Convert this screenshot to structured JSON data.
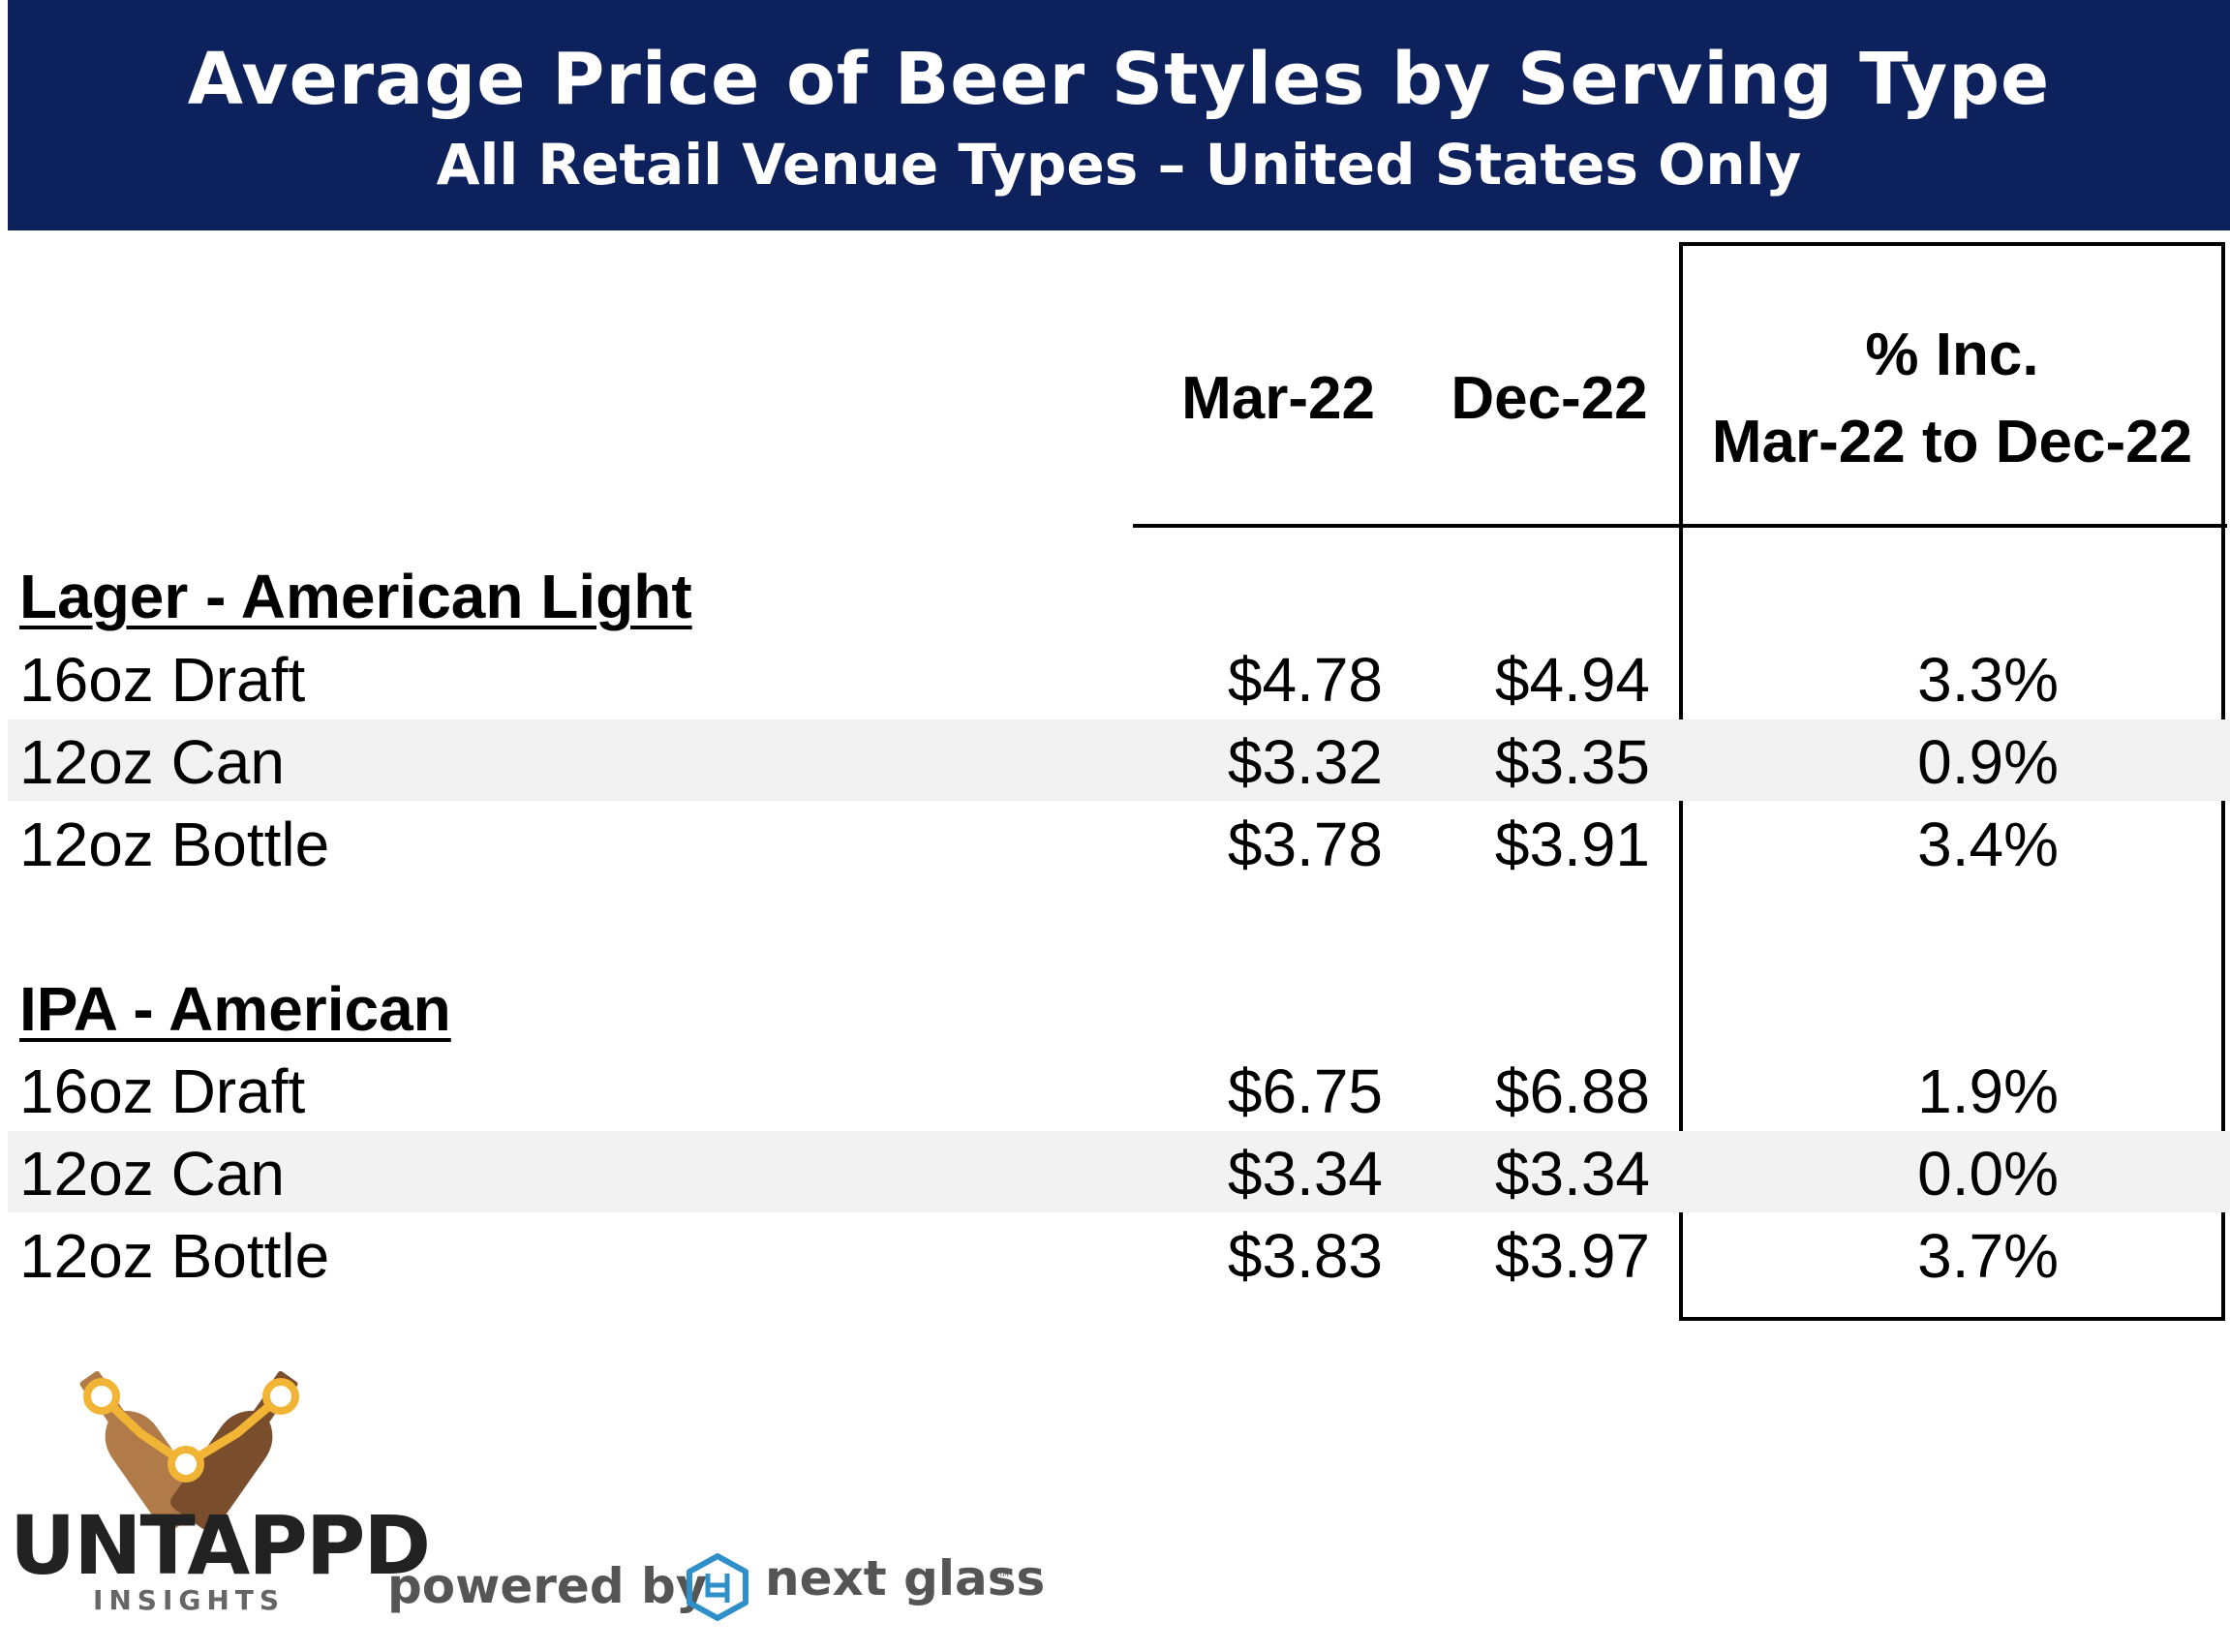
{
  "header": {
    "title": "Average Price of Beer Styles by Serving Type",
    "subtitle": "All Retail Venue Types – United States Only"
  },
  "columns": {
    "c1": "Mar-22",
    "c2": "Dec-22",
    "c3_line1": "% Inc.",
    "c3_line2": "Mar-22 to Dec-22"
  },
  "groups": [
    {
      "name": "Lager - American Light",
      "rows": [
        {
          "label": "16oz Draft",
          "mar": "$4.78",
          "dec": "$4.94",
          "pct": "3.3%"
        },
        {
          "label": "12oz Can",
          "mar": "$3.32",
          "dec": "$3.35",
          "pct": "0.9%"
        },
        {
          "label": "12oz Bottle",
          "mar": "$3.78",
          "dec": "$3.91",
          "pct": "3.4%"
        }
      ]
    },
    {
      "name": "IPA - American",
      "rows": [
        {
          "label": "16oz Draft",
          "mar": "$6.75",
          "dec": "$6.88",
          "pct": "1.9%"
        },
        {
          "label": "12oz Can",
          "mar": "$3.34",
          "dec": "$3.34",
          "pct": "0.0%"
        },
        {
          "label": "12oz Bottle",
          "mar": "$3.83",
          "dec": "$3.97",
          "pct": "3.7%"
        }
      ]
    }
  ],
  "chart_data": {
    "type": "table",
    "title": "Average Price of Beer Styles by Serving Type",
    "subtitle": "All Retail Venue Types – United States Only",
    "columns": [
      "Mar-22",
      "Dec-22",
      "% Inc. Mar-22 to Dec-22"
    ],
    "groups": [
      {
        "name": "Lager - American Light",
        "rows": [
          {
            "label": "16oz Draft",
            "values": [
              4.78,
              4.94,
              3.3
            ]
          },
          {
            "label": "12oz Can",
            "values": [
              3.32,
              3.35,
              0.9
            ]
          },
          {
            "label": "12oz Bottle",
            "values": [
              3.78,
              3.91,
              3.4
            ]
          }
        ]
      },
      {
        "name": "IPA - American",
        "rows": [
          {
            "label": "16oz Draft",
            "values": [
              6.75,
              6.88,
              1.9
            ]
          },
          {
            "label": "12oz Can",
            "values": [
              3.34,
              3.34,
              0.0
            ]
          },
          {
            "label": "12oz Bottle",
            "values": [
              3.83,
              3.97,
              3.7
            ]
          }
        ]
      }
    ]
  },
  "footer": {
    "brand": "UNTAPPD",
    "brand_sub": "INSIGHTS",
    "powered_by": "powered by",
    "partner": "next glass",
    "partner_tm": "™",
    "brand_icon": "beer-bottles-logo-icon",
    "partner_icon": "next-glass-logo-icon"
  },
  "colors": {
    "banner": "#0d215c",
    "band": "#f2f2f2",
    "logo_gold": "#f1b434",
    "logo_brown_light": "#b07b48",
    "logo_brown_dark": "#7a4e2d",
    "partner_blue": "#2e8fc9"
  }
}
